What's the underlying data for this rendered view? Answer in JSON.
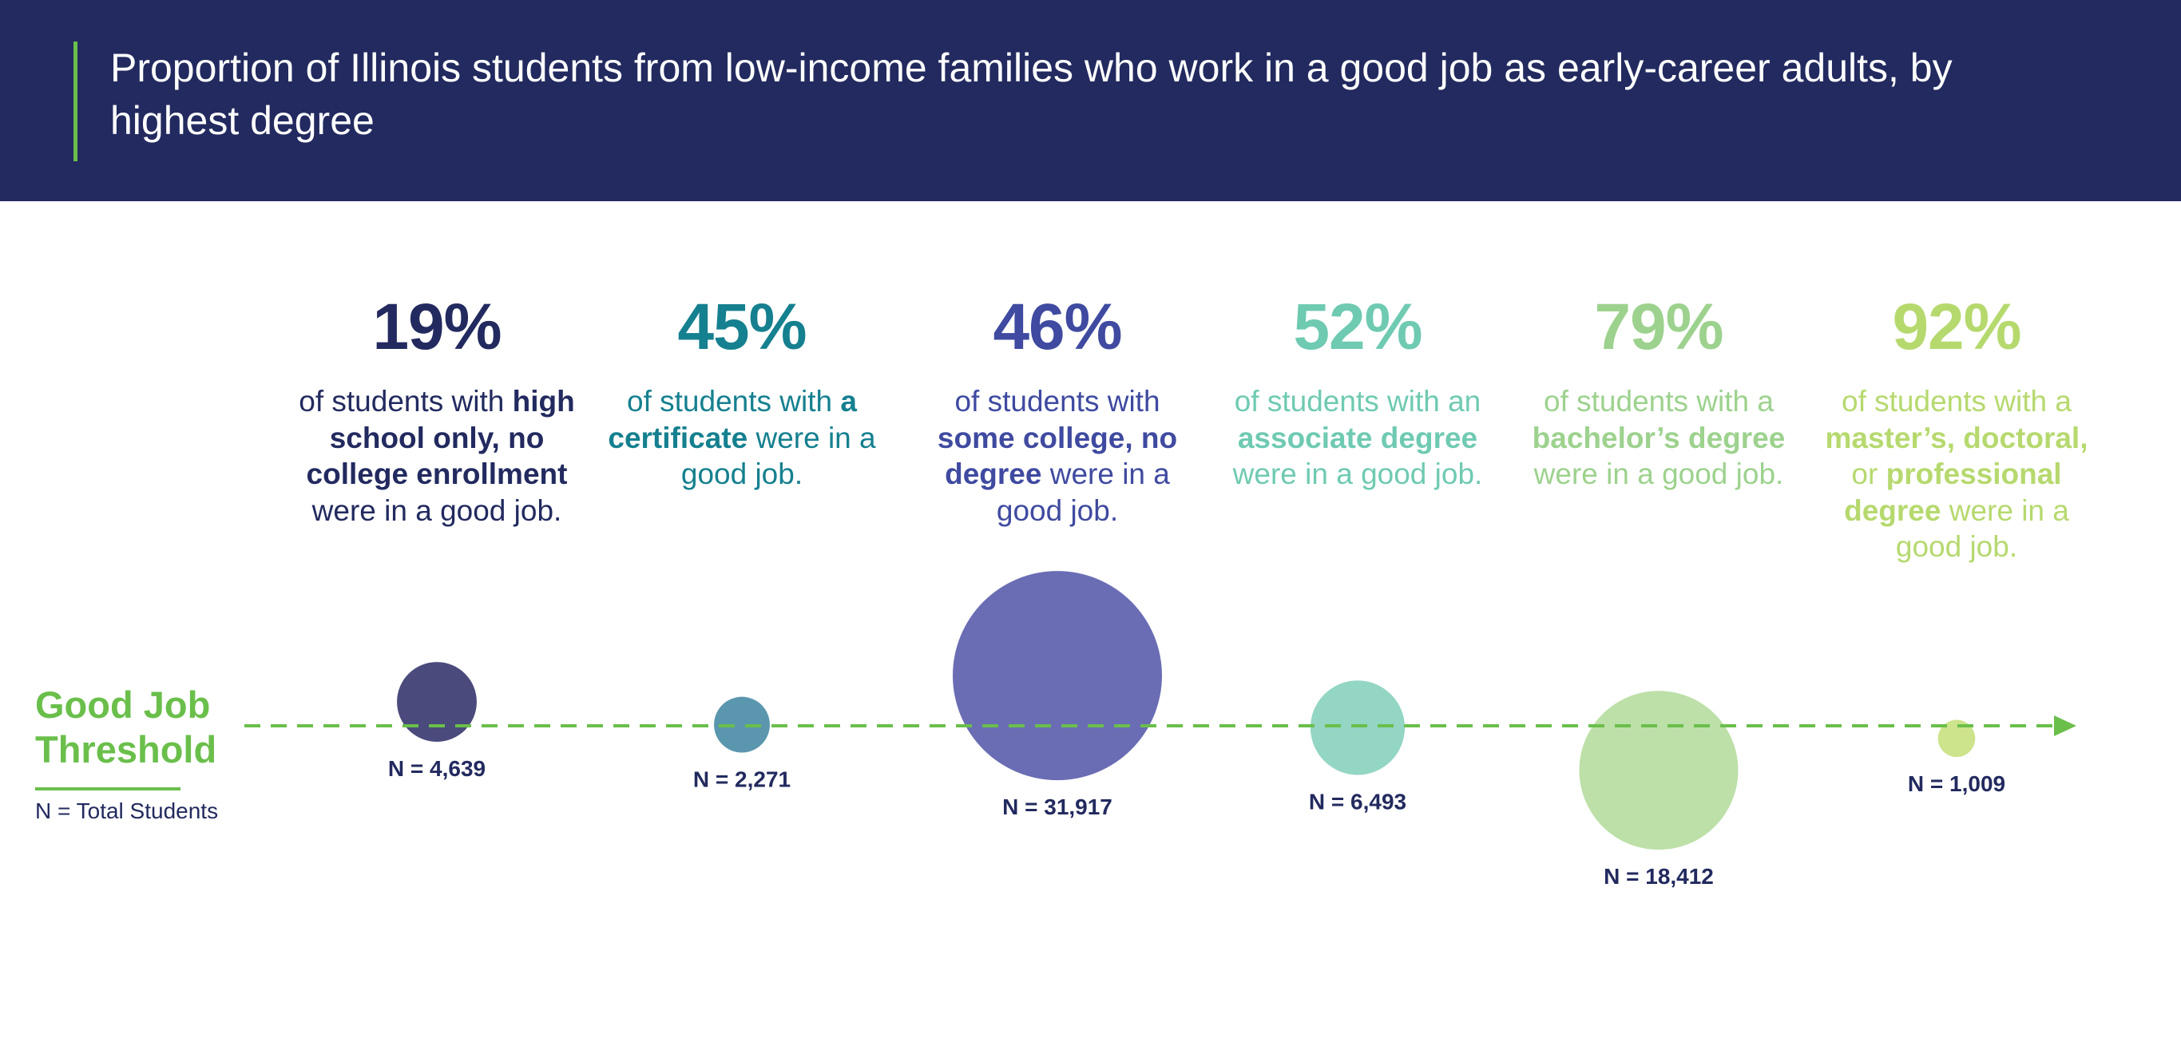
{
  "header": {
    "title": "Proportion of Illinois students from low-income families who work in a good job as early-career adults, by highest degree"
  },
  "legend": {
    "threshold_label_line1": "Good Job",
    "threshold_label_line2": "Threshold",
    "n_note": "N = Total Students"
  },
  "colors": {
    "header_bg": "#222a5f",
    "accent_green": "#6abf4b"
  },
  "chart_data": {
    "type": "bubble",
    "title": "Proportion of Illinois students from low-income families who work in a good job as early-career adults, by highest degree",
    "threshold_label": "Good Job Threshold",
    "size_legend": "N = Total Students",
    "categories": [
      "high school only, no college enrollment",
      "certificate",
      "some college, no degree",
      "associate degree",
      "bachelor's degree",
      "master's, doctoral, or professional degree"
    ],
    "values_pct": [
      19,
      45,
      46,
      52,
      79,
      92
    ],
    "n_values": [
      4639,
      2271,
      31917,
      6493,
      18412,
      1009
    ],
    "points": [
      {
        "pct_label": "19%",
        "desc": [
          {
            "t": "of students with ",
            "b": false
          },
          {
            "t": "high school only, no college enrollment",
            "b": true
          },
          {
            "t": " were in a good job.",
            "b": false
          }
        ],
        "n": 4639,
        "n_label": "N = 4,639",
        "color": "#222a5f",
        "bubble_color": "#4a4a7c",
        "pos": -0.3
      },
      {
        "pct_label": "45%",
        "desc": [
          {
            "t": "of students with ",
            "b": false
          },
          {
            "t": "a certificate",
            "b": true
          },
          {
            "t": " were in a good job.",
            "b": false
          }
        ],
        "n": 2271,
        "n_label": "N = 2,271",
        "color": "#15808f",
        "bubble_color": "#5a97ae",
        "pos": -0.02
      },
      {
        "pct_label": "46%",
        "desc": [
          {
            "t": "of students with ",
            "b": false
          },
          {
            "t": "some college, no degree",
            "b": true
          },
          {
            "t": " were in a good job.",
            "b": false
          }
        ],
        "n": 31917,
        "n_label": "N = 31,917",
        "color": "#3f4aa0",
        "bubble_color": "#6a6db4",
        "pos": -0.24
      },
      {
        "pct_label": "52%",
        "desc": [
          {
            "t": "of students with an ",
            "b": false
          },
          {
            "t": "associate degree",
            "b": true
          },
          {
            "t": " were in a good job.",
            "b": false
          }
        ],
        "n": 6493,
        "n_label": "N = 6,493",
        "color": "#6fcab2",
        "bubble_color": "#93d6c3",
        "pos": 0.02
      },
      {
        "pct_label": "79%",
        "desc": [
          {
            "t": "of students with a ",
            "b": false
          },
          {
            "t": "bachelor’s degree",
            "b": true
          },
          {
            "t": " were in a good job.",
            "b": false
          }
        ],
        "n": 18412,
        "n_label": "N = 18,412",
        "color": "#9dd28e",
        "bubble_color": "#bde0a8",
        "pos": 0.28
      },
      {
        "pct_label": "92%",
        "desc": [
          {
            "t": "of students with a ",
            "b": false
          },
          {
            "t": "master’s, doctoral,",
            "b": true
          },
          {
            "t": " or ",
            "b": false
          },
          {
            "t": "professional degree",
            "b": true
          },
          {
            "t": " were in a good job.",
            "b": false
          }
        ],
        "n": 1009,
        "n_label": "N = 1,009",
        "color": "#b6d96e",
        "bubble_color": "#cde38c",
        "pos": 0.34
      }
    ]
  }
}
